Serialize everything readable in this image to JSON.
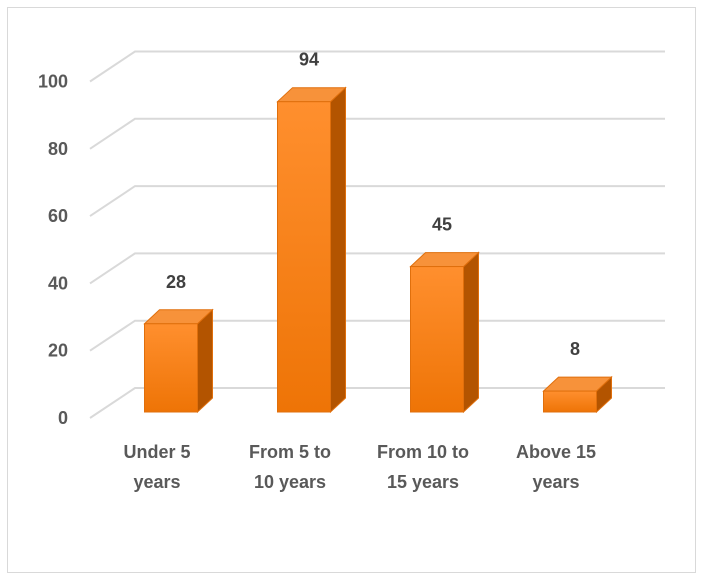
{
  "chart_data": {
    "type": "bar",
    "categories": [
      "Under 5 years",
      "From 5 to 10 years",
      "From 10 to 15 years",
      "Above 15 years"
    ],
    "category_lines": [
      [
        "Under 5",
        "years"
      ],
      [
        "From 5 to",
        "10 years"
      ],
      [
        "From 10 to",
        "15 years"
      ],
      [
        "Above 15",
        "years"
      ]
    ],
    "values": [
      28,
      94,
      45,
      8
    ],
    "data_labels": [
      "28",
      "94",
      "45",
      "8"
    ],
    "yticks": [
      0,
      20,
      40,
      60,
      80,
      100
    ],
    "ylim": [
      0,
      100
    ],
    "grid": true,
    "style": "3d-column",
    "colors": {
      "bar_front": "#f57c10",
      "bar_front_light": "#ff9133",
      "bar_side": "#b35400",
      "bar_top": "#f7923a",
      "bar_edge": "#e06f0c",
      "grid": "#d9d9d9"
    }
  }
}
